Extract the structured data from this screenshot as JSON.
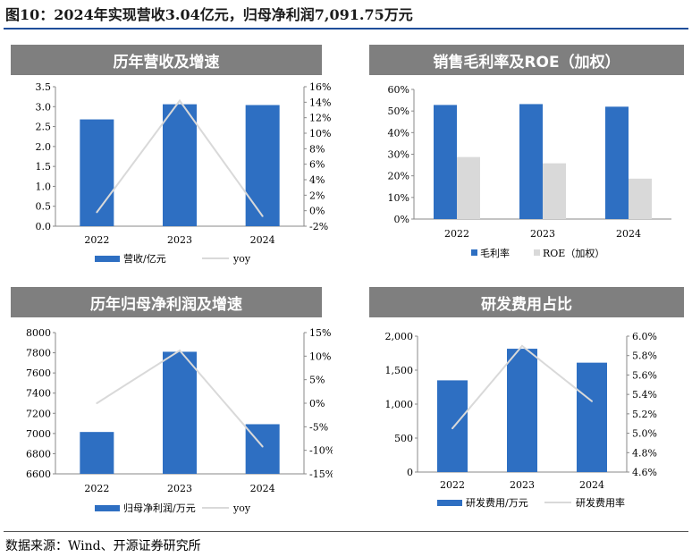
{
  "figure_title": "图10：2024年实现营收3.04亿元，归母净利润7,091.75万元",
  "source": "数据来源：Wind、开源证券研究所",
  "colors": {
    "bar": "#2e6fc2",
    "line": "#d9d9d9",
    "header_bg": "#7f7f7f"
  },
  "chart_data": [
    {
      "type": "bar",
      "title": "历年营收及增速",
      "categories": [
        "2022",
        "2023",
        "2024"
      ],
      "series": [
        {
          "name": "营收/亿元",
          "kind": "bar",
          "axis": "left",
          "values": [
            2.68,
            3.06,
            3.04
          ]
        },
        {
          "name": "yoy",
          "kind": "line",
          "axis": "right",
          "values": [
            -0.2,
            14.2,
            -0.7
          ]
        }
      ],
      "left_axis": {
        "ylim": [
          0,
          3.5
        ],
        "ticks": [
          "0.0",
          "0.5",
          "1.0",
          "1.5",
          "2.0",
          "2.5",
          "3.0",
          "3.5"
        ]
      },
      "right_axis": {
        "ylim": [
          -2,
          16
        ],
        "ticks": [
          "-2%",
          "0%",
          "2%",
          "4%",
          "6%",
          "8%",
          "10%",
          "12%",
          "14%",
          "16%"
        ]
      }
    },
    {
      "type": "bar",
      "title": "销售毛利率及ROE（加权）",
      "categories": [
        "2022",
        "2023",
        "2024"
      ],
      "series": [
        {
          "name": "毛利率",
          "color": "#2e6fc2",
          "values": [
            52.8,
            53.2,
            52.0
          ]
        },
        {
          "name": "ROE（加权）",
          "color": "#d9d9d9",
          "values": [
            28.7,
            25.8,
            18.7
          ]
        }
      ],
      "left_axis": {
        "ylim": [
          0,
          60
        ],
        "ticks": [
          "0%",
          "10%",
          "20%",
          "30%",
          "40%",
          "50%",
          "60%"
        ]
      }
    },
    {
      "type": "bar",
      "title": "历年归母净利润及增速",
      "categories": [
        "2022",
        "2023",
        "2024"
      ],
      "series": [
        {
          "name": "归母净利润/万元",
          "kind": "bar",
          "axis": "left",
          "values": [
            7015,
            7810,
            7092
          ]
        },
        {
          "name": "yoy",
          "kind": "line",
          "axis": "right",
          "values": [
            0.0,
            11.2,
            -9.2
          ]
        }
      ],
      "left_axis": {
        "ylim": [
          6600,
          8000
        ],
        "ticks": [
          "6600",
          "6800",
          "7000",
          "7200",
          "7400",
          "7600",
          "7800",
          "8000"
        ]
      },
      "right_axis": {
        "ylim": [
          -15,
          15
        ],
        "ticks": [
          "-15%",
          "-10%",
          "-5%",
          "0%",
          "5%",
          "10%",
          "15%"
        ]
      }
    },
    {
      "type": "bar",
      "title": "研发费用占比",
      "categories": [
        "2022",
        "2023",
        "2024"
      ],
      "series": [
        {
          "name": "研发费用/万元",
          "kind": "bar",
          "axis": "left",
          "values": [
            1350,
            1815,
            1610
          ]
        },
        {
          "name": "研发费用率",
          "kind": "line",
          "axis": "right",
          "values": [
            5.05,
            5.9,
            5.33
          ]
        }
      ],
      "left_axis": {
        "ylim": [
          0,
          2000
        ],
        "ticks": [
          "0",
          "500",
          "1,000",
          "1,500",
          "2,000"
        ]
      },
      "right_axis": {
        "ylim": [
          4.6,
          6.0
        ],
        "ticks": [
          "4.6%",
          "4.8%",
          "5.0%",
          "5.2%",
          "5.4%",
          "5.6%",
          "5.8%",
          "6.0%"
        ]
      }
    }
  ]
}
